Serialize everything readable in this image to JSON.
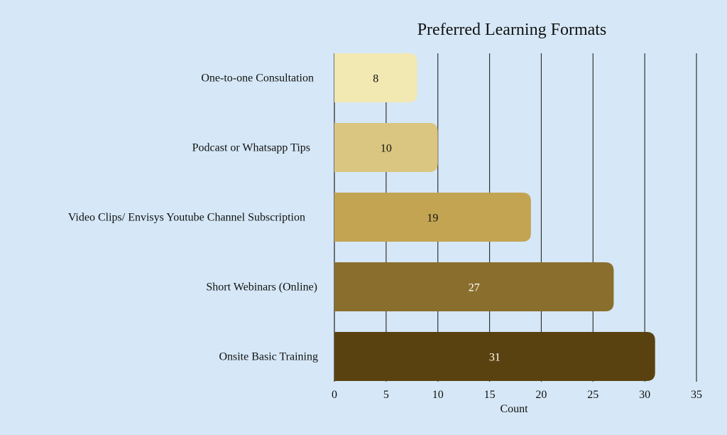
{
  "chart_data": {
    "type": "bar",
    "orientation": "horizontal",
    "title": "Preferred  Learning  Formats",
    "xlabel": "Count",
    "ylabel": "",
    "categories": [
      "One-to-one Consultation",
      "Podcast or Whatsapp Tips",
      "Video Clips/ Envisys Youtube Channel Subscription",
      "Short Webinars (Online)",
      "Onsite Basic Training"
    ],
    "values": [
      8,
      10,
      19,
      27,
      31
    ],
    "xlim": [
      0,
      35
    ],
    "xticks": [
      "0",
      "5",
      "10",
      "15",
      "20",
      "25",
      "30",
      "35"
    ],
    "grid": true,
    "legend": "none",
    "colors": [
      "#f2e8b2",
      "#dac680",
      "#c2a452",
      "#8a6e2d",
      "#5a4210"
    ],
    "label_colors": [
      "#111111",
      "#111111",
      "#111111",
      "#ffffff",
      "#ffffff"
    ],
    "background": "#d6e8f7"
  }
}
